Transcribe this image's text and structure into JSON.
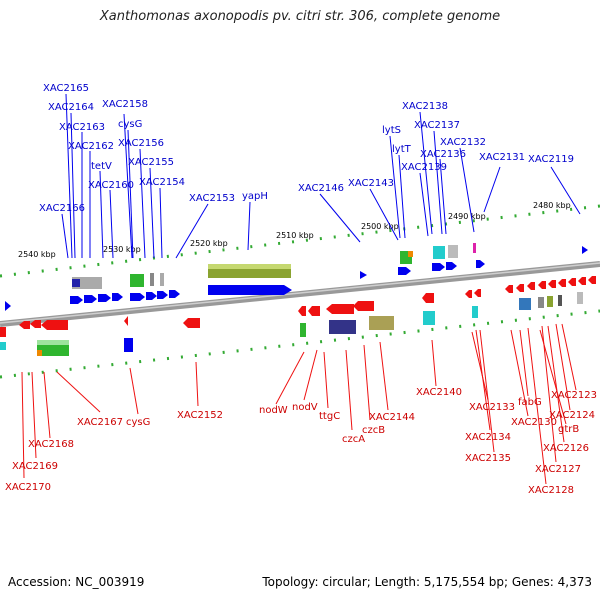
{
  "title": "Xanthomonas axonopodis pv. citri str. 306, complete genome",
  "footer": {
    "accession": "Accession: NC_003919",
    "topology": "Topology: circular; Length: 5,175,554 bp; Genes: 4,373"
  },
  "colors": {
    "forward": "#0000ee",
    "reverse": "#ee1111",
    "backbone": "#888888",
    "ticks": "#33aa33"
  },
  "scale_labels": [
    "2540 kbp",
    "2530 kbp",
    "2520 kbp",
    "2510 kbp",
    "2500 kbp",
    "2490 kbp",
    "2480 kbp"
  ],
  "forward_labels": [
    "XAC2165",
    "XAC2164",
    "XAC2163",
    "XAC2162",
    "XAC2166",
    "tetV",
    "XAC2160",
    "XAC2158",
    "cysG",
    "XAC2156",
    "XAC2155",
    "XAC2154",
    "XAC2153",
    "yapH",
    "XAC2146",
    "XAC2143",
    "lytS",
    "lytT",
    "XAC2138",
    "XAC2137",
    "XAC2136",
    "XAC2139",
    "XAC2132",
    "XAC2131",
    "XAC2119"
  ],
  "reverse_labels": [
    "XAC2167",
    "XAC2168",
    "XAC2169",
    "XAC2170",
    "cysG",
    "XAC2152",
    "nodW",
    "nodV",
    "ttgC",
    "czcA",
    "czcB",
    "XAC2144",
    "XAC2140",
    "XAC2133",
    "XAC2134",
    "XAC2135",
    "fabG",
    "XAC2130",
    "gtrB",
    "XAC2123",
    "XAC2124",
    "XAC2126",
    "XAC2127",
    "XAC2128"
  ]
}
